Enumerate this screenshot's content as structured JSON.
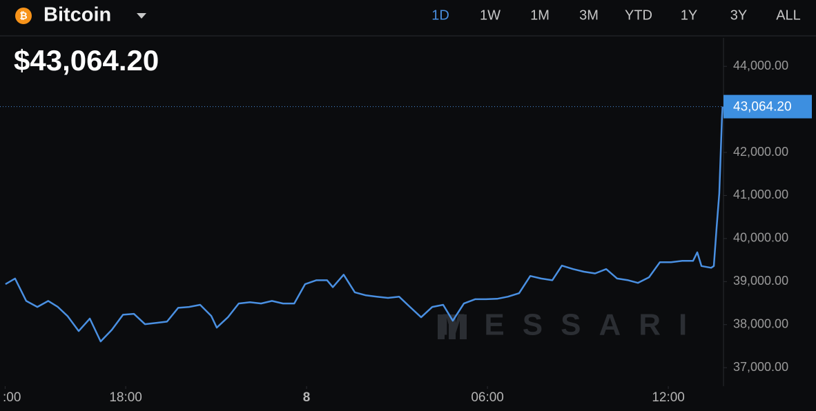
{
  "header": {
    "asset": "Bitcoin",
    "price": "$43,064.20",
    "ranges": [
      "1D",
      "1W",
      "1M",
      "3M",
      "YTD",
      "1Y",
      "3Y",
      "ALL"
    ],
    "selected_range_index": 0
  },
  "watermark": "MESSARI",
  "chart_data": {
    "type": "line",
    "color": "#4a90e2",
    "x": [
      14.01,
      14.33,
      14.7,
      15.07,
      15.43,
      15.75,
      16.07,
      16.44,
      16.81,
      17.17,
      17.54,
      17.91,
      18.27,
      18.64,
      19.01,
      19.37,
      19.74,
      20.1,
      20.47,
      20.84,
      21.02,
      21.39,
      21.75,
      22.12,
      22.49,
      22.85,
      23.22,
      23.59,
      23.95,
      24.32,
      24.68,
      24.87,
      25.23,
      25.6,
      25.97,
      26.33,
      26.7,
      27.07,
      27.43,
      27.8,
      28.17,
      28.53,
      28.85,
      29.22,
      29.59,
      29.95,
      30.32,
      30.68,
      31.05,
      31.42,
      31.78,
      32.15,
      32.47,
      32.84,
      33.2,
      33.57,
      33.94,
      34.3,
      34.67,
      34.99,
      35.36,
      35.72,
      36.09,
      36.46,
      36.82,
      36.96,
      37.1,
      37.42,
      37.51,
      37.6,
      37.69,
      37.78,
      37.8
    ],
    "values": [
      38940,
      39070,
      38550,
      38410,
      38550,
      38410,
      38200,
      37850,
      38140,
      37610,
      37880,
      38230,
      38250,
      38010,
      38040,
      38070,
      38390,
      38410,
      38460,
      38200,
      37930,
      38170,
      38490,
      38520,
      38490,
      38550,
      38490,
      38490,
      38940,
      39030,
      39030,
      38870,
      39160,
      38750,
      38680,
      38650,
      38620,
      38650,
      38410,
      38170,
      38410,
      38460,
      38090,
      38490,
      38590,
      38590,
      38600,
      38650,
      38730,
      39130,
      39070,
      39030,
      39370,
      39290,
      39230,
      39190,
      39290,
      39070,
      39030,
      38970,
      39100,
      39450,
      39450,
      39480,
      39480,
      39680,
      39360,
      39320,
      39360,
      40250,
      41050,
      42810,
      43064.2
    ],
    "xlim": [
      13.83,
      37.83
    ],
    "xticks": [
      {
        "value": 14,
        "label": ":00"
      },
      {
        "value": 18,
        "label": "18:00"
      },
      {
        "value": 24,
        "label": "8"
      },
      {
        "value": 30,
        "label": "06:00"
      },
      {
        "value": 36,
        "label": "12:00"
      }
    ],
    "ylim": [
      36570,
      44660
    ],
    "yticks": [
      {
        "value": 37000,
        "label": "37,000.00"
      },
      {
        "value": 38000,
        "label": "38,000.00"
      },
      {
        "value": 39000,
        "label": "39,000.00"
      },
      {
        "value": 40000,
        "label": "40,000.00"
      },
      {
        "value": 41000,
        "label": "41,000.00"
      },
      {
        "value": 42000,
        "label": "42,000.00"
      },
      {
        "value": 44000,
        "label": "44,000.00"
      }
    ],
    "last_price": {
      "value": 43064.2,
      "label": "43,064.20"
    },
    "grid": false
  }
}
